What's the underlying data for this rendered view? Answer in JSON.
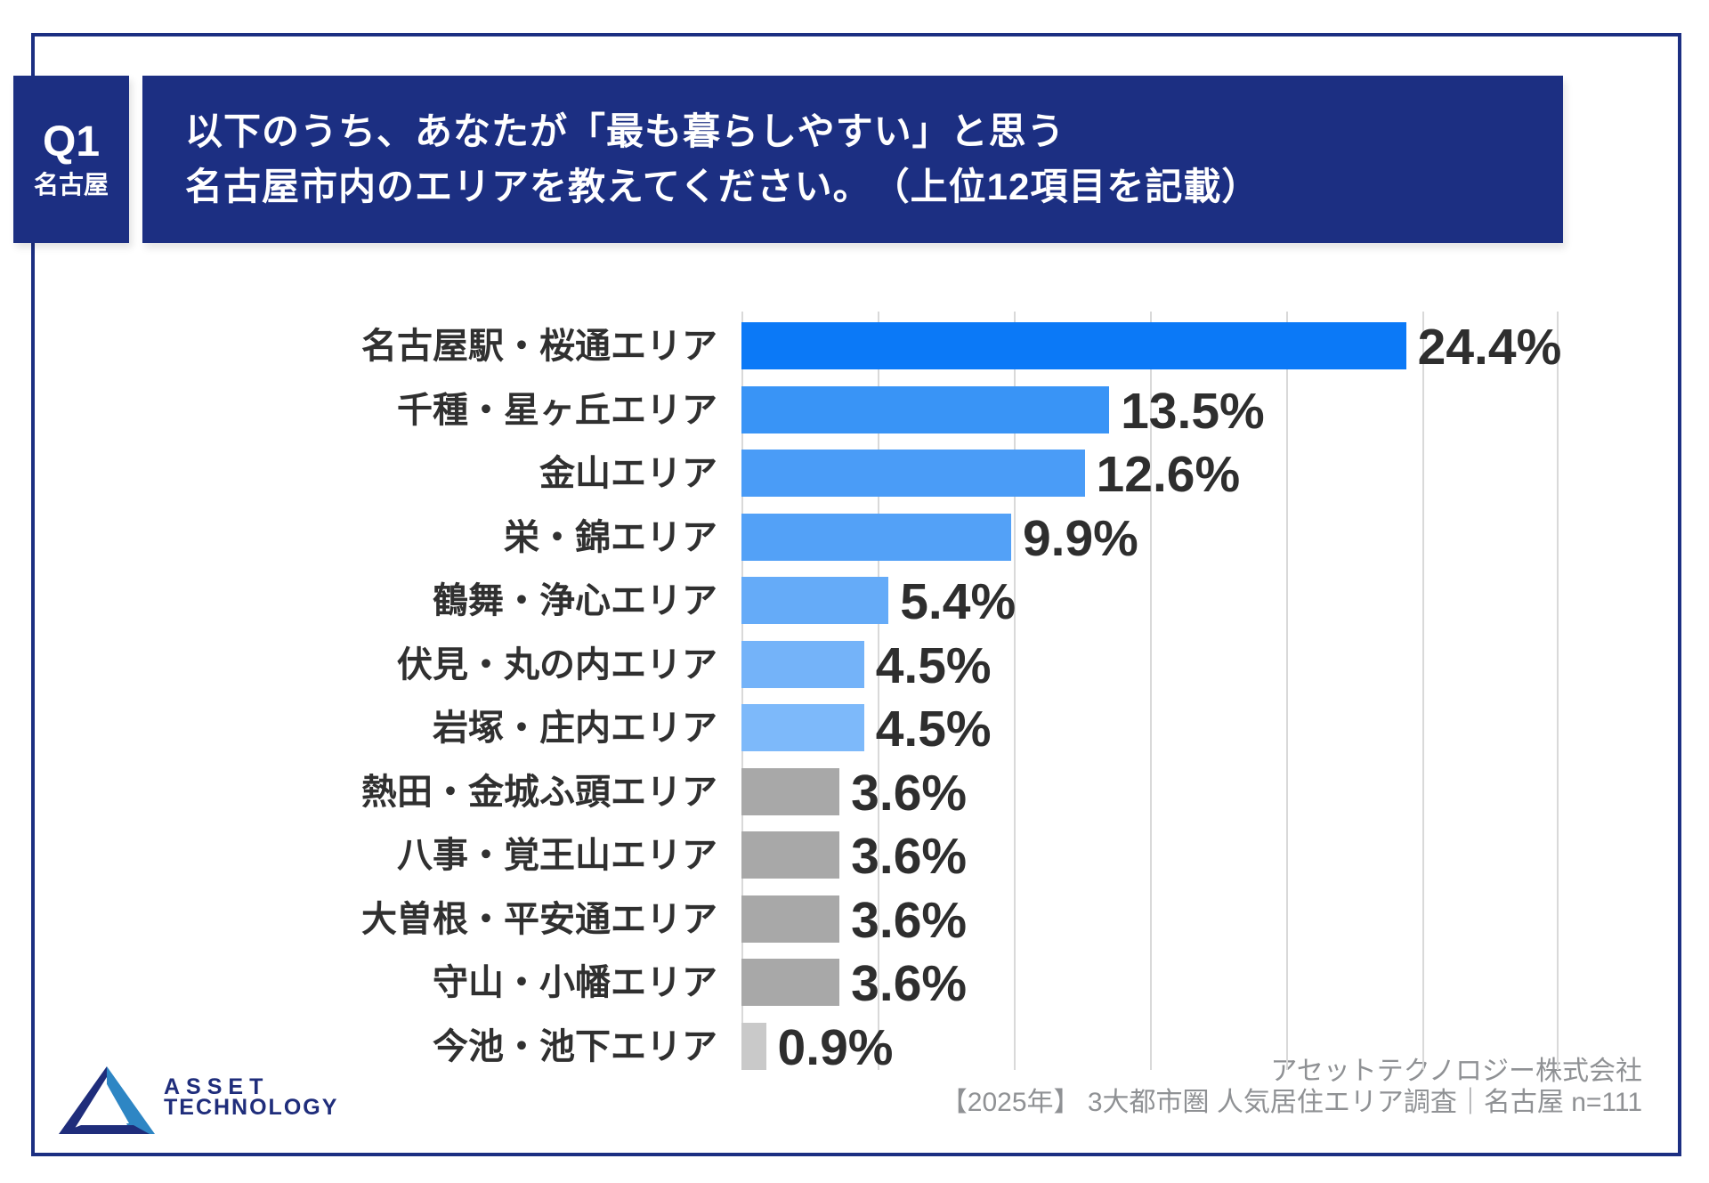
{
  "header": {
    "q_label": "Q1",
    "q_city": "名古屋",
    "title_line1": "以下のうち、あなたが「最も暮らしやすい」と思う",
    "title_line2": "名古屋市内のエリアを教えてください。　（上位12項目を記載）"
  },
  "chart_data": {
    "type": "bar",
    "orientation": "horizontal",
    "unit": "%",
    "title": "名古屋市内の最も暮らしやすいエリア 上位12項目",
    "categories": [
      "名古屋駅・桜通エリア",
      "千種・星ヶ丘エリア",
      "金山エリア",
      "栄・錦エリア",
      "鶴舞・浄心エリア",
      "伏見・丸の内エリア",
      "岩塚・庄内エリア",
      "熱田・金城ふ頭エリア",
      "八事・覚王山エリア",
      "大曽根・平安通エリア",
      "守山・小幡エリア",
      "今池・池下エリア"
    ],
    "values": [
      24.4,
      13.5,
      12.6,
      9.9,
      5.4,
      4.5,
      4.5,
      3.6,
      3.6,
      3.6,
      3.6,
      0.9
    ],
    "value_labels": [
      "24.4%",
      "13.5%",
      "12.6%",
      "9.9%",
      "5.4%",
      "4.5%",
      "4.5%",
      "3.6%",
      "3.6%",
      "3.6%",
      "3.6%",
      "0.9%"
    ],
    "bar_colors": [
      "#0b79f7",
      "#3994f6",
      "#4a9cf7",
      "#53a1f7",
      "#65abf8",
      "#74b3f9",
      "#7db9fa",
      "#a8a8a8",
      "#a8a8a8",
      "#a8a8a8",
      "#a8a8a8",
      "#c9c9c9"
    ],
    "xlim": [
      0,
      30
    ],
    "gridline_step": 5,
    "grid": true,
    "legend": false
  },
  "footer": {
    "logo_line1": "ASSET",
    "logo_line2": "TECHNOLOGY",
    "source_line1": "アセットテクノロジー株式会社",
    "source_line2": "【2025年】 3大都市圏 人気居住エリア調査｜名古屋 n=111"
  },
  "colors": {
    "navy": "#1c2f82",
    "gridline": "#d9d9d9",
    "label_text": "#303030",
    "value_text": "#2e2e2e",
    "source_text": "#8f9194",
    "logo_light_blue": "#2e86c4"
  }
}
